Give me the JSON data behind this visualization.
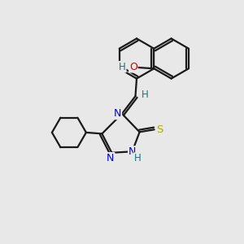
{
  "bg": "#e8e8e8",
  "bond_color": "#1a1a1a",
  "N_color": "#0000ee",
  "O_color": "#cc0000",
  "S_color": "#aaaa00",
  "H_color": "#008080",
  "lw": 1.6,
  "lw2": 1.1,
  "fs": 8.5,
  "xlim": [
    0,
    10
  ],
  "ylim": [
    0,
    10
  ]
}
